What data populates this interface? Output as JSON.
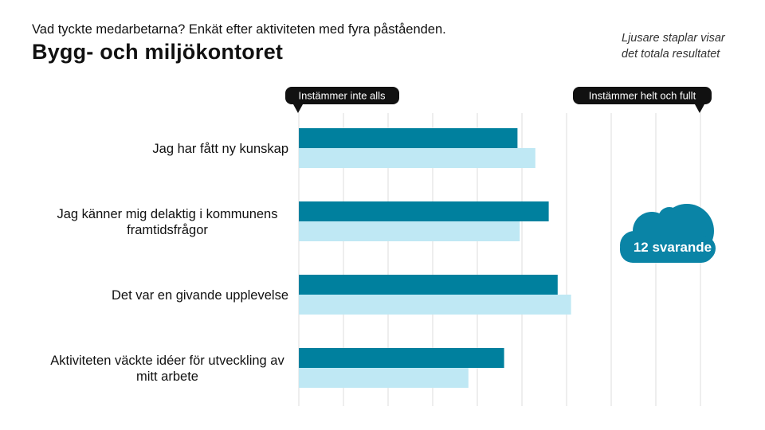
{
  "header": {
    "subtitle": "Vad tyckte medarbetarna? Enkät efter aktiviteten med fyra påståenden.",
    "title": "Bygg- och miljökontoret",
    "note": "Ljusare staplar visar\ndet totala resultatet"
  },
  "scale": {
    "min_label": "Instämmer inte alls",
    "max_label": "Instämmer helt och fullt"
  },
  "respondents": {
    "label": "12 svarande"
  },
  "colors": {
    "dark": "#00809e",
    "light": "#bfe8f4",
    "grid": "#dedede",
    "callout": "#111111",
    "cloud": "#0a84a6"
  },
  "chart_data": {
    "type": "bar",
    "orientation": "horizontal",
    "title": "Bygg- och miljökontoret",
    "xlim": [
      1,
      10
    ],
    "grid": true,
    "categories": [
      "Jag har fått ny kunskap",
      "Jag känner mig delaktig i kommunens framtidsfrågor",
      "Det var en givande upplevelse",
      "Aktiviteten väckte idéer för utveckling av mitt arbete"
    ],
    "category_lines": [
      [
        "Jag har fått ny kunskap"
      ],
      [
        "Jag känner mig delaktig i kommunens",
        "framtidsfrågor"
      ],
      [
        "Det var en givande upplevelse"
      ],
      [
        "Aktiviteten väckte idéer för utveckling av",
        "mitt arbete"
      ]
    ],
    "series": [
      {
        "name": "Bygg- och miljökontoret",
        "values": [
          5.9,
          6.6,
          6.8,
          5.6
        ]
      },
      {
        "name": "Totalt resultat",
        "values": [
          6.3,
          5.95,
          7.1,
          4.8
        ]
      }
    ]
  }
}
